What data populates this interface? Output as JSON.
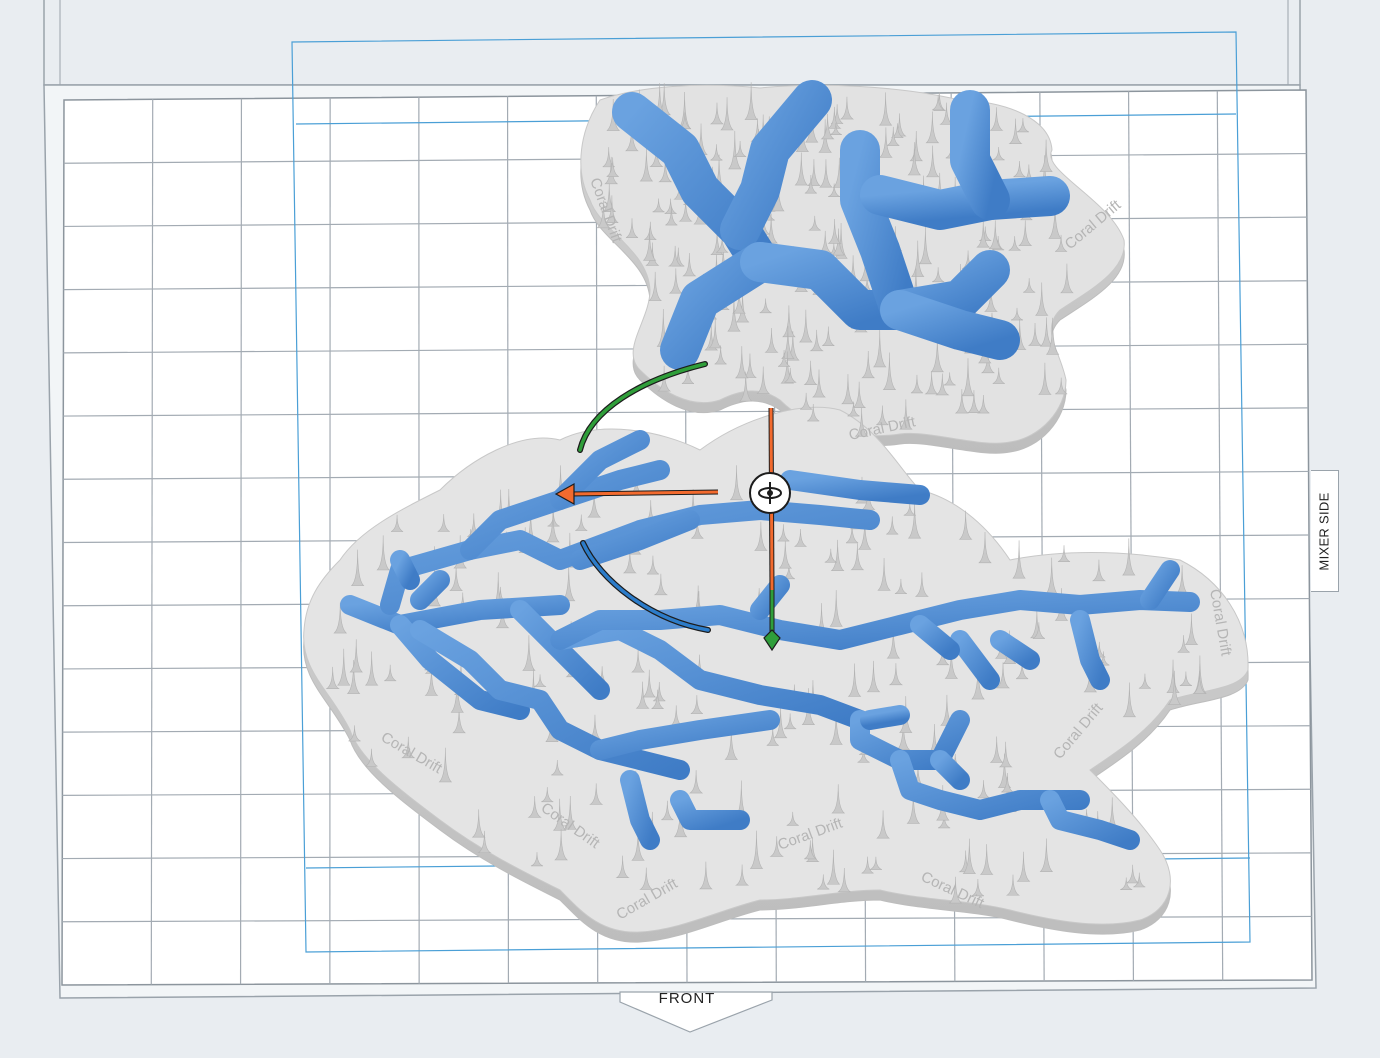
{
  "viewport": {
    "labels": {
      "front": "FRONT",
      "side": "MIXER SIDE"
    },
    "model_text": "Coral Drift",
    "colors": {
      "background": "#e9edf1",
      "plate": "#ffffff",
      "grid": "#9aa3ab",
      "bounds": "#4a9fd6",
      "model_base": "#d9d9d9",
      "branch": "#4d8ad4",
      "gizmo_x": "#f26a2e",
      "gizmo_y": "#2f9e3a",
      "gizmo_z": "#2c7cc9"
    },
    "icons": {
      "gizmo_center": "rotate-orbit-icon"
    }
  }
}
